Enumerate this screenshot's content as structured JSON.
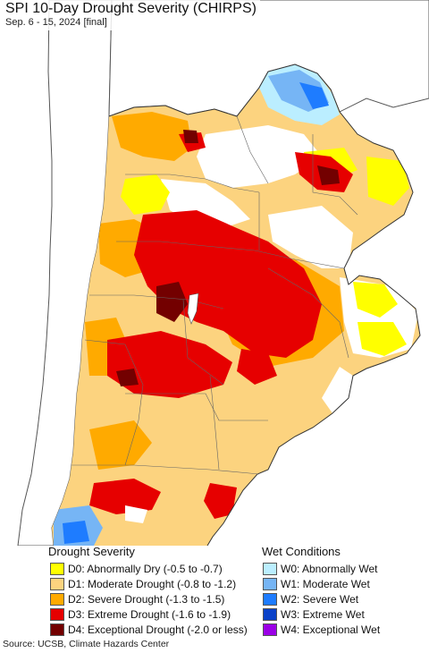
{
  "map": {
    "title": "SPI 10-Day Drought Severity (CHIRPS)",
    "subtitle": "Sep. 6 - 15, 2024 [final]",
    "colors": {
      "ocean": "#ffffff",
      "none": "#ffffff",
      "D0": "#ffff00",
      "D1": "#fcd37f",
      "D2": "#ffaa00",
      "D3": "#e60000",
      "D4": "#730000",
      "W0": "#bbeeff",
      "W1": "#76b5f5",
      "W2": "#1e7cff",
      "W3": "#0a41c8",
      "border": "#555555"
    }
  },
  "legend": {
    "drought": {
      "heading": "Drought Severity",
      "items": [
        {
          "code": "D0",
          "label": "D0: Abnormally Dry (-0.5 to -0.7)",
          "color": "#ffff00"
        },
        {
          "code": "D1",
          "label": "D1: Moderate Drought (-0.8 to -1.2)",
          "color": "#fcd37f"
        },
        {
          "code": "D2",
          "label": "D2: Severe Drought (-1.3 to -1.5)",
          "color": "#ffaa00"
        },
        {
          "code": "D3",
          "label": "D3: Extreme Drought (-1.6 to -1.9)",
          "color": "#e60000"
        },
        {
          "code": "D4",
          "label": "D4: Exceptional Drought (-2.0 or less)",
          "color": "#730000"
        }
      ]
    },
    "wet": {
      "heading": "Wet Conditions",
      "items": [
        {
          "code": "W0",
          "label": "W0: Abnormally Wet",
          "color": "#bbeeff"
        },
        {
          "code": "W1",
          "label": "W1: Moderate Wet",
          "color": "#76b5f5"
        },
        {
          "code": "W2",
          "label": "W2: Severe Wet",
          "color": "#1e7cff"
        },
        {
          "code": "W3",
          "label": "W3: Extreme Wet",
          "color": "#0a41c8"
        },
        {
          "code": "W4",
          "label": "W4: Exceptional Wet",
          "color": "#9b00e6"
        }
      ]
    }
  },
  "footer": {
    "source": "Source: UCSB, Climate Hazards Center"
  }
}
